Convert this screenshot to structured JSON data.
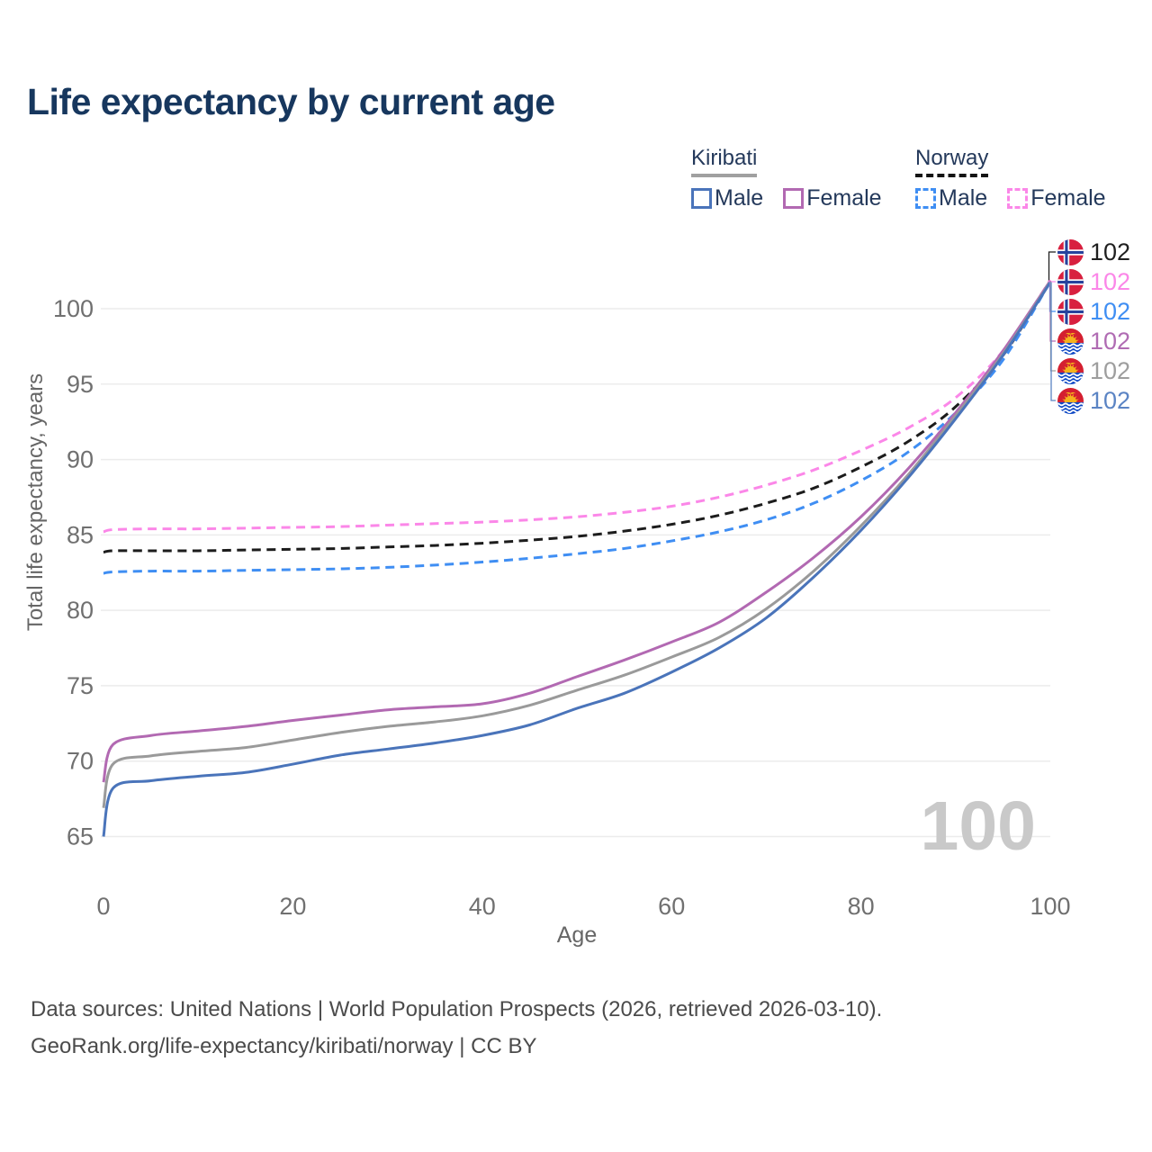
{
  "header": {
    "title": "Life expectancy by current age"
  },
  "legend": {
    "kiribati": {
      "title": "Kiribati",
      "male": "Male",
      "female": "Female",
      "underline_color": "#a0a0a0",
      "underline_style": "solid"
    },
    "norway": {
      "title": "Norway",
      "male": "Male",
      "female": "Female",
      "underline_color": "#141414",
      "underline_style": "dashed"
    }
  },
  "watermark": "100",
  "footer": {
    "line1": "Data sources: United Nations | World Population Prospects (2026, retrieved 2026-03-10).",
    "line2": "GeoRank.org/life-expectancy/kiribati/norway | CC BY"
  },
  "chart_data": {
    "type": "line",
    "title": "Life expectancy by current age",
    "xlabel": "Age",
    "ylabel": "Total life expectancy, years",
    "xlim": [
      0,
      100
    ],
    "ylim": [
      63.5,
      103.5
    ],
    "xticks": [
      0,
      20,
      40,
      60,
      80,
      100
    ],
    "yticks": [
      65,
      70,
      75,
      80,
      85,
      90,
      95,
      100
    ],
    "grid": "horizontal-only",
    "gridline_color": "#ececec",
    "legend_position": "top-right",
    "x": [
      0,
      1,
      5,
      10,
      15,
      20,
      25,
      30,
      35,
      40,
      45,
      50,
      55,
      60,
      65,
      70,
      75,
      80,
      85,
      90,
      95,
      100
    ],
    "series": [
      {
        "name": "Norway overall",
        "country": "Norway",
        "sex": "Both",
        "color": "#1c1c1c",
        "dash": "dashed",
        "label_color": "#1f1f1f",
        "end_label": "102",
        "y": [
          83.85,
          83.95,
          83.95,
          83.95,
          84.0,
          84.05,
          84.1,
          84.2,
          84.3,
          84.45,
          84.65,
          84.9,
          85.25,
          85.7,
          86.3,
          87.1,
          88.1,
          89.5,
          91.2,
          93.5,
          96.9,
          101.85
        ]
      },
      {
        "name": "Norway Female",
        "country": "Norway",
        "sex": "Female",
        "color": "#fb87e8",
        "dash": "dashed",
        "label_color": "#fb87e8",
        "end_label": "102",
        "y": [
          85.2,
          85.35,
          85.4,
          85.4,
          85.45,
          85.5,
          85.55,
          85.65,
          85.75,
          85.85,
          86.0,
          86.2,
          86.5,
          86.9,
          87.5,
          88.3,
          89.3,
          90.6,
          92.1,
          94.1,
          97.2,
          101.9
        ]
      },
      {
        "name": "Norway Male",
        "country": "Norway",
        "sex": "Male",
        "color": "#3f8ef3",
        "dash": "dashed",
        "label_color": "#3f8ef3",
        "end_label": "102",
        "y": [
          82.45,
          82.55,
          82.6,
          82.6,
          82.65,
          82.7,
          82.75,
          82.85,
          83.0,
          83.2,
          83.45,
          83.75,
          84.1,
          84.6,
          85.2,
          86.0,
          87.1,
          88.6,
          90.5,
          93.1,
          96.6,
          101.8
        ]
      },
      {
        "name": "Kiribati Female",
        "country": "Kiribati",
        "sex": "Female",
        "color": "#b269b2",
        "dash": "solid",
        "label_color": "#b06cb3",
        "end_label": "102",
        "y": [
          68.6,
          71.1,
          71.7,
          72.0,
          72.3,
          72.7,
          73.05,
          73.4,
          73.6,
          73.8,
          74.5,
          75.6,
          76.7,
          77.9,
          79.2,
          81.2,
          83.5,
          86.2,
          89.4,
          93.1,
          97.2,
          101.85
        ]
      },
      {
        "name": "Kiribati overall",
        "country": "Kiribati",
        "sex": "Both",
        "color": "#9a9a9a",
        "dash": "solid",
        "label_color": "#9e9e9e",
        "end_label": "102",
        "y": [
          66.9,
          69.8,
          70.35,
          70.65,
          70.9,
          71.4,
          71.9,
          72.3,
          72.6,
          73.0,
          73.7,
          74.7,
          75.7,
          76.9,
          78.2,
          80.1,
          82.6,
          85.6,
          89.0,
          92.9,
          97.0,
          101.8
        ]
      },
      {
        "name": "Kiribati Male",
        "country": "Kiribati",
        "sex": "Male",
        "color": "#4a74ba",
        "dash": "solid",
        "label_color": "#5b84c4",
        "end_label": "102",
        "y": [
          65.0,
          68.2,
          68.7,
          69.0,
          69.25,
          69.8,
          70.4,
          70.8,
          71.2,
          71.7,
          72.4,
          73.5,
          74.5,
          75.9,
          77.5,
          79.5,
          82.2,
          85.3,
          88.8,
          92.7,
          96.9,
          101.75
        ]
      }
    ]
  }
}
